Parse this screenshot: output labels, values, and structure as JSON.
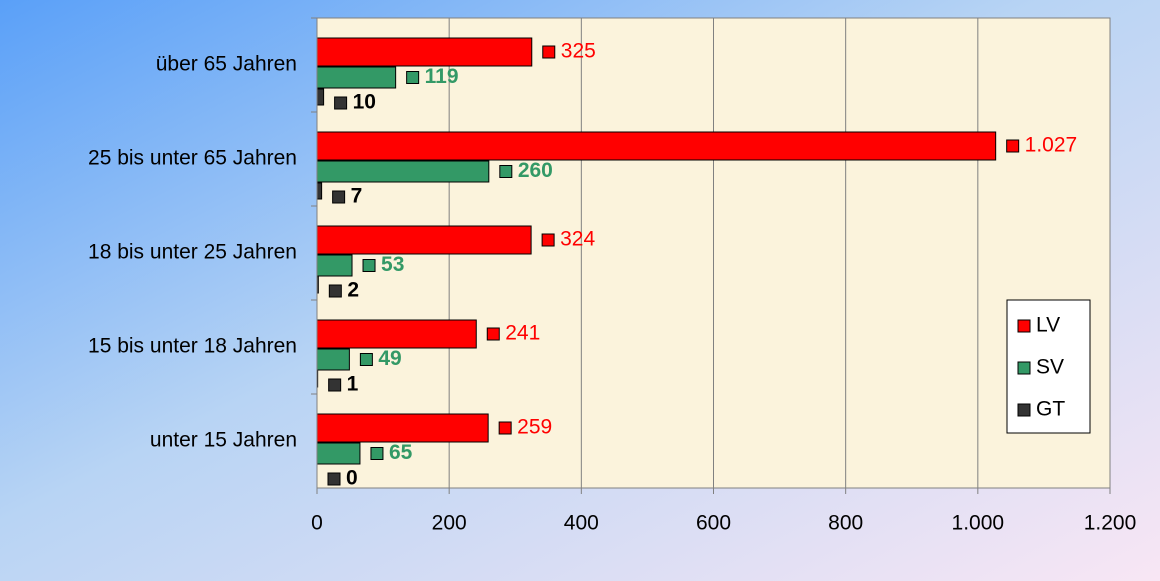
{
  "chart_data": {
    "type": "bar",
    "orientation": "horizontal",
    "categories": [
      "über 65 Jahren",
      "25 bis unter 65 Jahren",
      "18 bis unter 25 Jahren",
      "15 bis unter 18 Jahren",
      "unter 15 Jahren"
    ],
    "series": [
      {
        "name": "LV",
        "color": "#ff0000",
        "values": [
          325,
          1027,
          324,
          241,
          259
        ],
        "value_labels": [
          "325",
          "1.027",
          "324",
          "241",
          "259"
        ]
      },
      {
        "name": "SV",
        "color": "#339966",
        "values": [
          119,
          260,
          53,
          49,
          65
        ]
      },
      {
        "name": "GT",
        "color": "#333333",
        "values": [
          10,
          7,
          2,
          1,
          0
        ]
      }
    ],
    "xlim": [
      0,
      1200
    ],
    "xticks": [
      0,
      200,
      400,
      600,
      800,
      {
        "value": 1000,
        "label": "1.000"
      },
      {
        "value": 1200,
        "label": "1.200"
      }
    ],
    "grid": true,
    "legend": "right"
  }
}
